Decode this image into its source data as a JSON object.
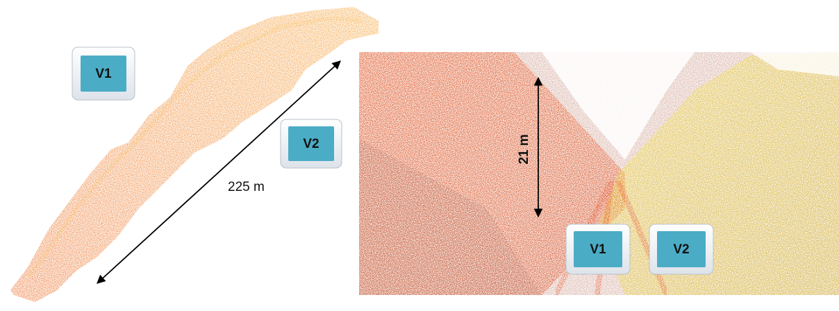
{
  "left_panel": {
    "labels": {
      "v1": "V1",
      "v2": "V2"
    },
    "distance": "225 m"
  },
  "right_panel": {
    "distance": "21 m",
    "labels": {
      "v1": "V1",
      "v2": "V2"
    }
  }
}
